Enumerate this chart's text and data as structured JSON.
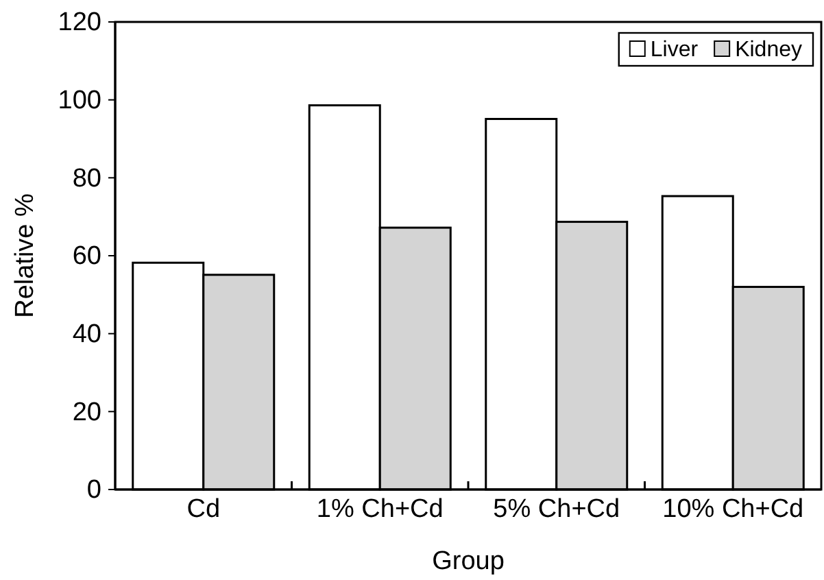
{
  "chart_data": {
    "type": "bar",
    "xlabel": "Group",
    "ylabel": "Relative %",
    "categories": [
      "Cd",
      "1% Ch+Cd",
      "5% Ch+Cd",
      "10% Ch+Cd"
    ],
    "series": [
      {
        "name": "Liver",
        "color": "#ffffff",
        "values": [
          58.2,
          98.6,
          95.1,
          75.3
        ]
      },
      {
        "name": "Kidney",
        "color": "#d4d4d4",
        "values": [
          55.1,
          67.2,
          68.7,
          52.0
        ]
      }
    ],
    "ylim": [
      0,
      120
    ],
    "yticks": [
      0,
      20,
      40,
      60,
      80,
      100,
      120
    ],
    "grid": false,
    "legend": "top right"
  }
}
